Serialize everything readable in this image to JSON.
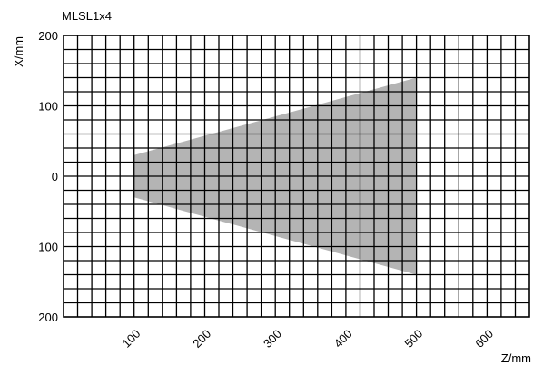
{
  "chart_data": {
    "type": "area",
    "title": "MLSL1x4",
    "xlabel": "Z/mm",
    "ylabel": "X/mm",
    "xlim": [
      0,
      660
    ],
    "ylim": [
      -200,
      200
    ],
    "x_ticks": [
      100,
      200,
      300,
      400,
      500,
      600
    ],
    "x_tick_labels": [
      "100",
      "200",
      "300",
      "400",
      "500",
      "600"
    ],
    "y_ticks": [
      200,
      100,
      0,
      -100,
      -200
    ],
    "y_tick_labels": [
      "200",
      "100",
      "0",
      "100",
      "200"
    ],
    "grid": true,
    "grid_spacing": {
      "x": 20,
      "y": 20
    },
    "series": [
      {
        "color": "#b4b4b4",
        "points": [
          [
            100,
            30
          ],
          [
            500,
            140
          ],
          [
            500,
            -140
          ],
          [
            100,
            -30
          ]
        ]
      }
    ]
  }
}
